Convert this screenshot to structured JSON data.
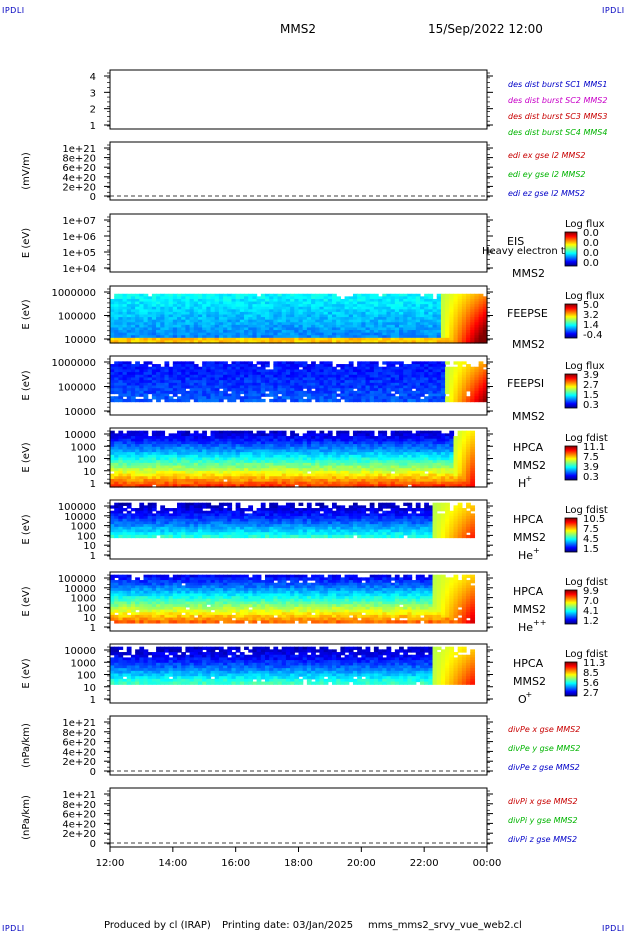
{
  "header": {
    "satellite": "MMS2",
    "datetime": "15/Sep/2022 12:00",
    "corner_label": "IPDLI"
  },
  "footer": {
    "produced_by": "Produced by cl (IRAP)",
    "printing_date": "Printing date: 03/Jan/2025",
    "script_name": "mms_mms2_srvy_vue_web2.cl"
  },
  "x_axis_ticks": [
    "12:00",
    "14:00",
    "16:00",
    "18:00",
    "20:00",
    "22:00",
    "00:00"
  ],
  "chart_data": [
    {
      "type": "line",
      "ylabel": "",
      "yticks": [
        "4",
        "3",
        "2",
        "1"
      ],
      "legend": [
        {
          "text": "des dist burst SC1 MMS1",
          "color": "#0000c8"
        },
        {
          "text": "des dist burst SC2 MMS2",
          "color": "#c800c8"
        },
        {
          "text": "des dist burst SC3 MMS3",
          "color": "#c80000"
        },
        {
          "text": "des dist burst SC4 MMS4",
          "color": "#00b400"
        }
      ],
      "series": []
    },
    {
      "type": "line",
      "ylabel": "(mV/m)",
      "yticks": [
        "1e+21",
        "8e+20",
        "6e+20",
        "4e+20",
        "2e+20",
        "0"
      ],
      "legend": [
        {
          "text": "edi ex gse l2 MMS2",
          "color": "#c80000"
        },
        {
          "text": "edi ey gse l2 MMS2",
          "color": "#00b400"
        },
        {
          "text": "edi ez gse l2 MMS2",
          "color": "#0000c8"
        }
      ],
      "series": []
    },
    {
      "type": "heatmap",
      "ylabel": "E (eV)",
      "yticks": [
        "1e+07",
        "1e+06",
        "1e+05",
        "1e+04"
      ],
      "instrument": [
        "EIS",
        "MMS2"
      ],
      "overlay_text": "Heavy electron to",
      "colorbar_title": "Log flux",
      "colorbar_ticks": [
        "0.0",
        "0.0",
        "0.0",
        "0.0"
      ]
    },
    {
      "type": "heatmap",
      "ylabel": "E (eV)",
      "yticks": [
        "1000000",
        "100000",
        "10000"
      ],
      "instrument": [
        "FEEPSE",
        "MMS2"
      ],
      "colorbar_title": "Log flux",
      "colorbar_ticks": [
        "5.0",
        "3.2",
        "1.4",
        "-0.4"
      ]
    },
    {
      "type": "heatmap",
      "ylabel": "E (eV)",
      "yticks": [
        "1000000",
        "100000",
        "10000"
      ],
      "instrument": [
        "FEEPSI",
        "MMS2"
      ],
      "colorbar_title": "Log flux",
      "colorbar_ticks": [
        "3.9",
        "2.7",
        "1.5",
        "0.3"
      ]
    },
    {
      "type": "heatmap",
      "ylabel": "E (eV)",
      "yticks": [
        "10000",
        "1000",
        "100",
        "10",
        "1"
      ],
      "instrument": [
        "HPCA",
        "MMS2"
      ],
      "species": "H",
      "species_charge": "+",
      "colorbar_title": "Log fdist",
      "colorbar_ticks": [
        "11.1",
        "7.5",
        "3.9",
        "0.3"
      ]
    },
    {
      "type": "heatmap",
      "ylabel": "E (eV)",
      "yticks": [
        "100000",
        "10000",
        "1000",
        "100",
        "10",
        "1"
      ],
      "instrument": [
        "HPCA",
        "MMS2"
      ],
      "species": "He",
      "species_charge": "+",
      "colorbar_title": "Log fdist",
      "colorbar_ticks": [
        "10.5",
        "7.5",
        "4.5",
        "1.5"
      ]
    },
    {
      "type": "heatmap",
      "ylabel": "E (eV)",
      "yticks": [
        "100000",
        "10000",
        "1000",
        "100",
        "10",
        "1"
      ],
      "instrument": [
        "HPCA",
        "MMS2"
      ],
      "species": "He",
      "species_charge": "++",
      "colorbar_title": "Log fdist",
      "colorbar_ticks": [
        "9.9",
        "7.0",
        "4.1",
        "1.2"
      ]
    },
    {
      "type": "heatmap",
      "ylabel": "E (eV)",
      "yticks": [
        "10000",
        "1000",
        "100",
        "10",
        "1"
      ],
      "instrument": [
        "HPCA",
        "MMS2"
      ],
      "species": "O",
      "species_charge": "+",
      "colorbar_title": "Log fdist",
      "colorbar_ticks": [
        "11.3",
        "8.5",
        "5.6",
        "2.7"
      ]
    },
    {
      "type": "line",
      "ylabel": "(nPa/km)",
      "yticks": [
        "1e+21",
        "8e+20",
        "6e+20",
        "4e+20",
        "2e+20",
        "0"
      ],
      "legend": [
        {
          "text": "divPe x gse MMS2",
          "color": "#c80000"
        },
        {
          "text": "divPe y gse MMS2",
          "color": "#00b400"
        },
        {
          "text": "divPe z gse MMS2",
          "color": "#0000c8"
        }
      ],
      "series": []
    },
    {
      "type": "line",
      "ylabel": "(nPa/km)",
      "yticks": [
        "1e+21",
        "8e+20",
        "6e+20",
        "4e+20",
        "2e+20",
        "0"
      ],
      "legend": [
        {
          "text": "divPi x gse MMS2",
          "color": "#c80000"
        },
        {
          "text": "divPi y gse MMS2",
          "color": "#00b400"
        },
        {
          "text": "divPi z gse MMS2",
          "color": "#0000c8"
        }
      ],
      "series": []
    }
  ]
}
